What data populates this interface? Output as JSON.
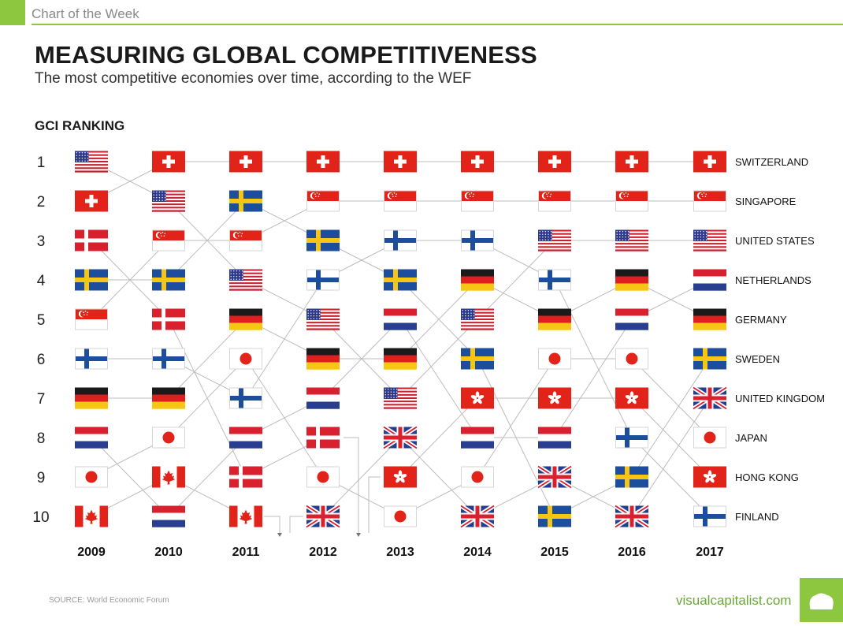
{
  "header": {
    "tag": "Chart of the Week",
    "title": "MEASURING GLOBAL COMPETITIVENESS",
    "subtitle": "The most competitive economies over time, according to the WEF"
  },
  "colors": {
    "accent": "#8dc63f",
    "line": "#bdbdbd"
  },
  "chart_data": {
    "type": "bump",
    "ylabel": "GCI RANKING",
    "ranks": [
      "1",
      "2",
      "3",
      "4",
      "5",
      "6",
      "7",
      "8",
      "9",
      "10"
    ],
    "years": [
      "2009",
      "2010",
      "2011",
      "2012",
      "2013",
      "2014",
      "2015",
      "2016",
      "2017"
    ],
    "rankings": [
      [
        "US",
        "CH",
        "DK",
        "SE",
        "SG",
        "FI",
        "DE",
        "NL",
        "JP",
        "CA"
      ],
      [
        "CH",
        "US",
        "SG",
        "SE",
        "DK",
        "FI",
        "DE",
        "JP",
        "CA",
        "NL"
      ],
      [
        "CH",
        "SE",
        "SG",
        "US",
        "DE",
        "JP",
        "FI",
        "NL",
        "DK",
        "CA"
      ],
      [
        "CH",
        "SG",
        "SE",
        "FI",
        "US",
        "DE",
        "NL",
        "DK",
        "JP",
        "GB"
      ],
      [
        "CH",
        "SG",
        "FI",
        "SE",
        "NL",
        "DE",
        "US",
        "GB",
        "HK",
        "JP"
      ],
      [
        "CH",
        "SG",
        "FI",
        "DE",
        "US",
        "SE",
        "HK",
        "NL",
        "JP",
        "GB"
      ],
      [
        "CH",
        "SG",
        "US",
        "FI",
        "DE",
        "JP",
        "HK",
        "NL",
        "GB",
        "SE"
      ],
      [
        "CH",
        "SG",
        "US",
        "DE",
        "NL",
        "JP",
        "HK",
        "FI",
        "SE",
        "GB"
      ],
      [
        "CH",
        "SG",
        "US",
        "NL",
        "DE",
        "SE",
        "GB",
        "JP",
        "HK",
        "FI"
      ]
    ],
    "countries": {
      "CH": "SWITZERLAND",
      "SG": "SINGAPORE",
      "US": "UNITED STATES",
      "NL": "NETHERLANDS",
      "DE": "GERMANY",
      "SE": "SWEDEN",
      "GB": "UNITED KINGDOM",
      "JP": "JAPAN",
      "HK": "HONG KONG",
      "FI": "FINLAND"
    },
    "label_order": [
      "CH",
      "SG",
      "US",
      "NL",
      "DE",
      "SE",
      "GB",
      "JP",
      "HK",
      "FI"
    ],
    "off_chart_markers": [
      "2011",
      "2012"
    ]
  },
  "footer": {
    "source": "SOURCE: World Economic Forum",
    "brand": "visualcapitalist.com"
  }
}
